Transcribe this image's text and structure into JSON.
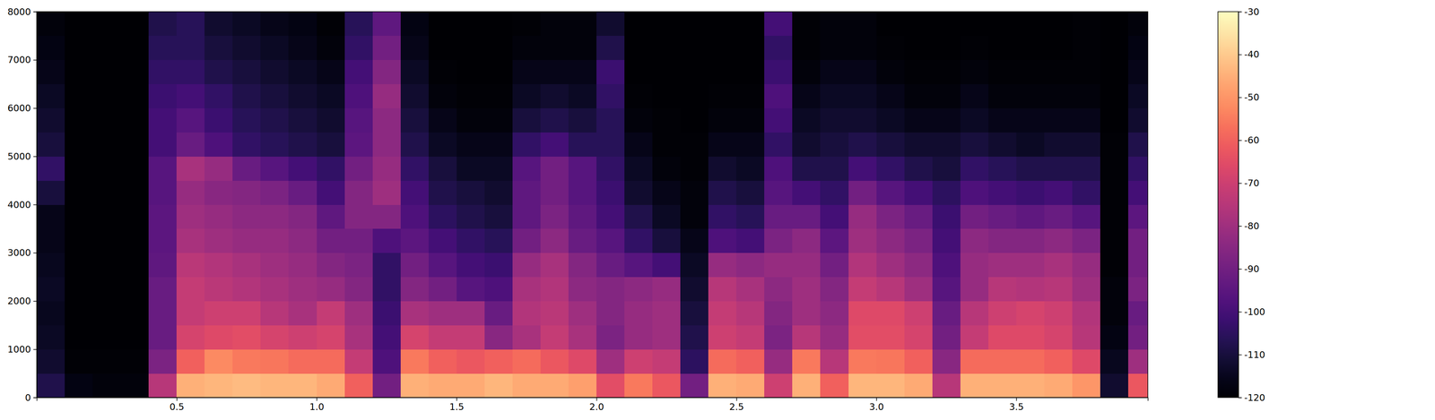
{
  "chart_data": {
    "type": "heatmap",
    "color": "magma",
    "xlim": [
      0,
      3.97
    ],
    "ylim": [
      0,
      8000
    ],
    "xticks": [
      0.5,
      {
        "value": 1,
        "label": "1.0"
      },
      1.5,
      {
        "value": 2,
        "label": "2.0"
      },
      2.5,
      {
        "value": 3,
        "label": "3.0"
      },
      3.5
    ],
    "yticks": [
      0,
      1000,
      2000,
      3000,
      4000,
      5000,
      6000,
      7000,
      8000
    ],
    "x_bins": [
      0,
      0.1,
      0.2,
      0.3,
      0.4,
      0.5,
      0.6,
      0.7,
      0.8,
      0.9,
      1,
      1.1,
      1.2,
      1.3,
      1.4,
      1.5,
      1.6,
      1.7,
      1.8,
      1.9,
      2,
      2.1,
      2.2,
      2.3,
      2.4,
      2.5,
      2.6,
      2.7,
      2.8,
      2.9,
      3,
      3.1,
      3.2,
      3.3,
      3.4,
      3.5,
      3.6,
      3.7,
      3.8,
      3.9,
      3.97
    ],
    "y_bins": [
      0,
      500,
      1000,
      1500,
      2000,
      2500,
      3000,
      3500,
      4000,
      4500,
      5000,
      5500,
      6000,
      6500,
      7000,
      7500,
      8000
    ],
    "z": [
      [
        -108,
        -117,
        -118,
        -118,
        -75,
        -45,
        -44,
        -43,
        -44,
        -44,
        -46,
        -60,
        -90,
        -45,
        -46,
        -46,
        -44,
        -46,
        -46,
        -48,
        -65,
        -55,
        -62,
        -90,
        -45,
        -46,
        -70,
        -45,
        -60,
        -44,
        -44,
        -46,
        -75,
        -45,
        -45,
        -45,
        -46,
        -50,
        -112,
        -62
      ],
      [
        -112,
        -119,
        -119,
        -119,
        -88,
        -60,
        -52,
        -55,
        -56,
        -58,
        -58,
        -72,
        -98,
        -55,
        -60,
        -62,
        -60,
        -58,
        -62,
        -66,
        -80,
        -70,
        -72,
        -105,
        -58,
        -60,
        -82,
        -55,
        -75,
        -55,
        -56,
        -60,
        -85,
        -58,
        -58,
        -58,
        -60,
        -66,
        -115,
        -80
      ],
      [
        -114,
        -120,
        -120,
        -120,
        -92,
        -68,
        -66,
        -65,
        -68,
        -70,
        -68,
        -78,
        -100,
        -68,
        -72,
        -72,
        -85,
        -78,
        -72,
        -78,
        -88,
        -82,
        -80,
        -108,
        -70,
        -72,
        -88,
        -75,
        -82,
        -65,
        -65,
        -68,
        -90,
        -72,
        -66,
        -66,
        -68,
        -75,
        -117,
        -90
      ],
      [
        -115,
        -120,
        -120,
        -120,
        -92,
        -72,
        -70,
        -70,
        -75,
        -78,
        -72,
        -80,
        -102,
        -78,
        -80,
        -80,
        -92,
        -76,
        -74,
        -80,
        -86,
        -82,
        -80,
        -110,
        -72,
        -75,
        -86,
        -80,
        -84,
        -66,
        -66,
        -70,
        -92,
        -75,
        -70,
        -68,
        -70,
        -76,
        -118,
        -92
      ],
      [
        -114,
        -120,
        -120,
        -120,
        -92,
        -72,
        -74,
        -76,
        -78,
        -80,
        -82,
        -86,
        -104,
        -86,
        -90,
        -96,
        -98,
        -78,
        -76,
        -84,
        -86,
        -84,
        -82,
        -112,
        -75,
        -78,
        -84,
        -80,
        -86,
        -72,
        -75,
        -80,
        -96,
        -82,
        -75,
        -76,
        -75,
        -80,
        -118,
        -88
      ],
      [
        -115,
        -120,
        -120,
        -120,
        -94,
        -74,
        -76,
        -78,
        -80,
        -82,
        -86,
        -88,
        -104,
        -90,
        -96,
        -100,
        -102,
        -82,
        -78,
        -86,
        -92,
        -96,
        -100,
        -114,
        -82,
        -84,
        -82,
        -82,
        -90,
        -76,
        -80,
        -84,
        -98,
        -82,
        -80,
        -80,
        -78,
        -82,
        -119,
        -90
      ],
      [
        -116,
        -120,
        -120,
        -120,
        -95,
        -78,
        -80,
        -82,
        -82,
        -84,
        -90,
        -90,
        -98,
        -95,
        -100,
        -104,
        -106,
        -90,
        -84,
        -92,
        -96,
        -104,
        -110,
        -116,
        -98,
        -100,
        -88,
        -84,
        -95,
        -80,
        -84,
        -88,
        -100,
        -84,
        -86,
        -86,
        -84,
        -88,
        -119,
        -90
      ],
      [
        -116,
        -120,
        -120,
        -120,
        -95,
        -80,
        -82,
        -84,
        -84,
        -86,
        -94,
        -86,
        -86,
        -98,
        -105,
        -108,
        -110,
        -94,
        -88,
        -94,
        -100,
        -108,
        -114,
        -118,
        -104,
        -106,
        -92,
        -92,
        -100,
        -82,
        -88,
        -92,
        -102,
        -90,
        -92,
        -94,
        -92,
        -96,
        -119,
        -95
      ],
      [
        -110,
        -120,
        -120,
        -120,
        -96,
        -82,
        -85,
        -86,
        -88,
        -92,
        -100,
        -86,
        -80,
        -100,
        -108,
        -110,
        -112,
        -94,
        -90,
        -96,
        -102,
        -112,
        -116,
        -118,
        -108,
        -110,
        -96,
        -100,
        -104,
        -90,
        -96,
        -100,
        -105,
        -98,
        -100,
        -102,
        -100,
        -104,
        -119,
        -100
      ],
      [
        -104,
        -120,
        -120,
        -120,
        -96,
        -78,
        -82,
        -92,
        -96,
        -100,
        -104,
        -90,
        -82,
        -104,
        -110,
        -114,
        -114,
        -96,
        -90,
        -96,
        -104,
        -114,
        -118,
        -119,
        -112,
        -114,
        -98,
        -108,
        -108,
        -100,
        -104,
        -108,
        -110,
        -104,
        -106,
        -108,
        -108,
        -108,
        -119,
        -104
      ],
      [
        -110,
        -120,
        -120,
        -120,
        -100,
        -92,
        -98,
        -104,
        -106,
        -108,
        -110,
        -95,
        -84,
        -108,
        -114,
        -116,
        -116,
        -104,
        -100,
        -106,
        -106,
        -116,
        -119,
        -119,
        -116,
        -116,
        -104,
        -112,
        -110,
        -108,
        -110,
        -112,
        -112,
        -110,
        -112,
        -114,
        -112,
        -112,
        -119,
        -108
      ],
      [
        -112,
        -120,
        -120,
        -120,
        -100,
        -96,
        -102,
        -106,
        -108,
        -110,
        -112,
        -96,
        -84,
        -110,
        -116,
        -118,
        -118,
        -110,
        -108,
        -110,
        -106,
        -118,
        -119,
        -120,
        -118,
        -118,
        -100,
        -114,
        -112,
        -112,
        -114,
        -116,
        -116,
        -114,
        -116,
        -116,
        -116,
        -116,
        -120,
        -112
      ],
      [
        -114,
        -120,
        -120,
        -120,
        -102,
        -100,
        -104,
        -108,
        -110,
        -112,
        -114,
        -98,
        -82,
        -112,
        -118,
        -119,
        -119,
        -114,
        -112,
        -114,
        -104,
        -119,
        -120,
        -120,
        -119,
        -119,
        -98,
        -116,
        -114,
        -114,
        -116,
        -118,
        -118,
        -116,
        -118,
        -118,
        -118,
        -118,
        -120,
        -114
      ],
      [
        -116,
        -120,
        -120,
        -120,
        -104,
        -104,
        -108,
        -110,
        -112,
        -114,
        -116,
        -100,
        -86,
        -114,
        -119,
        -120,
        -120,
        -116,
        -116,
        -116,
        -102,
        -120,
        -120,
        -120,
        -120,
        -120,
        -102,
        -118,
        -116,
        -116,
        -118,
        -119,
        -119,
        -118,
        -119,
        -119,
        -119,
        -119,
        -120,
        -116
      ],
      [
        -117,
        -120,
        -120,
        -120,
        -106,
        -106,
        -110,
        -112,
        -114,
        -116,
        -118,
        -104,
        -90,
        -116,
        -120,
        -120,
        -120,
        -118,
        -118,
        -118,
        -108,
        -120,
        -120,
        -120,
        -120,
        -120,
        -104,
        -119,
        -118,
        -118,
        -119,
        -120,
        -120,
        -119,
        -120,
        -120,
        -120,
        -119,
        -120,
        -117
      ],
      [
        -118,
        -120,
        -120,
        -120,
        -108,
        -106,
        -112,
        -114,
        -116,
        -117,
        -119,
        -106,
        -94,
        -117,
        -120,
        -120,
        -120,
        -119,
        -118,
        -118,
        -112,
        -120,
        -120,
        -120,
        -120,
        -120,
        -100,
        -119,
        -118,
        -118,
        -120,
        -120,
        -120,
        -120,
        -120,
        -120,
        -120,
        -119,
        -120,
        -118
      ]
    ],
    "colorbar": {
      "range": [
        -120,
        -30
      ],
      "ticks": [
        -120,
        -110,
        -100,
        -90,
        -80,
        -70,
        -60,
        -50,
        -40,
        -30
      ]
    }
  }
}
